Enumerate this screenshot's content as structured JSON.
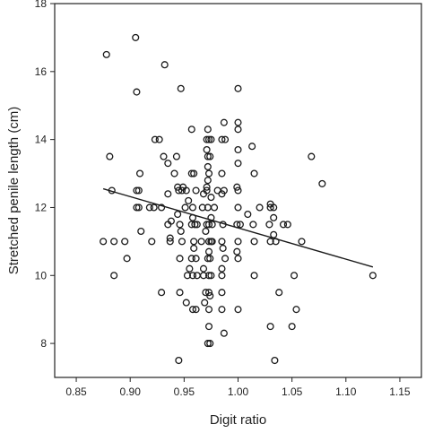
{
  "chart_data": {
    "type": "scatter",
    "xlabel": "Digit ratio",
    "ylabel": "Stretched penile length (cm)",
    "xlim": [
      0.83,
      1.17
    ],
    "ylim": [
      7,
      18
    ],
    "x_ticks": [
      "0.85",
      "0.90",
      "0.95",
      "1.00",
      "1.05",
      "1.10",
      "1.15"
    ],
    "y_ticks": [
      "8",
      "10",
      "12",
      "14",
      "16",
      "18"
    ],
    "grid": false,
    "marker": "open-circle",
    "colors": {
      "marker": "#1a1a1a",
      "line": "#1a1a1a",
      "axis": "#222222"
    },
    "trend_line": {
      "x": [
        0.875,
        1.125
      ],
      "y": [
        12.55,
        10.25
      ]
    },
    "points": [
      [
        0.878,
        16.5
      ],
      [
        0.905,
        17.0
      ],
      [
        0.932,
        16.2
      ],
      [
        0.906,
        15.4
      ],
      [
        0.947,
        15.5
      ],
      [
        1.0,
        15.5
      ],
      [
        0.957,
        14.3
      ],
      [
        0.972,
        14.3
      ],
      [
        0.987,
        14.5
      ],
      [
        1.0,
        14.5
      ],
      [
        1.0,
        14.3
      ],
      [
        0.923,
        14.0
      ],
      [
        0.927,
        14.0
      ],
      [
        0.971,
        14.0
      ],
      [
        0.973,
        14.0
      ],
      [
        0.975,
        14.0
      ],
      [
        0.985,
        14.0
      ],
      [
        0.988,
        14.0
      ],
      [
        1.013,
        13.8
      ],
      [
        0.971,
        13.7
      ],
      [
        1.0,
        13.7
      ],
      [
        0.881,
        13.5
      ],
      [
        0.931,
        13.5
      ],
      [
        0.943,
        13.5
      ],
      [
        0.972,
        13.5
      ],
      [
        0.974,
        13.5
      ],
      [
        1.068,
        13.5
      ],
      [
        0.935,
        13.3
      ],
      [
        0.972,
        13.2
      ],
      [
        1.0,
        13.3
      ],
      [
        0.909,
        13.0
      ],
      [
        0.941,
        13.0
      ],
      [
        0.957,
        13.0
      ],
      [
        0.959,
        13.0
      ],
      [
        0.973,
        13.0
      ],
      [
        0.985,
        13.0
      ],
      [
        1.015,
        13.0
      ],
      [
        0.972,
        12.8
      ],
      [
        1.078,
        12.7
      ],
      [
        0.971,
        12.6
      ],
      [
        0.944,
        12.6
      ],
      [
        0.949,
        12.6
      ],
      [
        0.999,
        12.6
      ],
      [
        0.883,
        12.5
      ],
      [
        0.906,
        12.5
      ],
      [
        0.908,
        12.5
      ],
      [
        0.945,
        12.5
      ],
      [
        0.948,
        12.5
      ],
      [
        0.952,
        12.5
      ],
      [
        0.961,
        12.5
      ],
      [
        0.971,
        12.5
      ],
      [
        0.981,
        12.5
      ],
      [
        0.987,
        12.5
      ],
      [
        1.0,
        12.5
      ],
      [
        0.935,
        12.4
      ],
      [
        0.968,
        12.4
      ],
      [
        0.985,
        12.4
      ],
      [
        0.954,
        12.2
      ],
      [
        0.975,
        12.3
      ],
      [
        0.906,
        12.0
      ],
      [
        0.908,
        12.0
      ],
      [
        0.918,
        12.0
      ],
      [
        0.922,
        12.0
      ],
      [
        0.929,
        12.0
      ],
      [
        0.951,
        12.0
      ],
      [
        0.958,
        12.0
      ],
      [
        0.967,
        12.0
      ],
      [
        0.972,
        12.0
      ],
      [
        0.978,
        12.0
      ],
      [
        1.0,
        12.0
      ],
      [
        1.02,
        12.0
      ],
      [
        1.03,
        12.0
      ],
      [
        1.033,
        12.0
      ],
      [
        1.03,
        12.1
      ],
      [
        0.944,
        11.8
      ],
      [
        1.009,
        11.8
      ],
      [
        0.958,
        11.7
      ],
      [
        0.975,
        11.7
      ],
      [
        1.033,
        11.7
      ],
      [
        0.938,
        11.6
      ],
      [
        0.935,
        11.5
      ],
      [
        0.946,
        11.5
      ],
      [
        0.957,
        11.5
      ],
      [
        0.96,
        11.5
      ],
      [
        0.962,
        11.5
      ],
      [
        0.971,
        11.5
      ],
      [
        0.973,
        11.5
      ],
      [
        0.976,
        11.5
      ],
      [
        0.986,
        11.5
      ],
      [
        0.999,
        11.5
      ],
      [
        1.002,
        11.5
      ],
      [
        1.014,
        11.5
      ],
      [
        1.029,
        11.5
      ],
      [
        1.042,
        11.5
      ],
      [
        1.046,
        11.5
      ],
      [
        0.91,
        11.3
      ],
      [
        0.947,
        11.3
      ],
      [
        0.97,
        11.3
      ],
      [
        1.033,
        11.2
      ],
      [
        0.875,
        11.0
      ],
      [
        0.885,
        11.0
      ],
      [
        0.895,
        11.0
      ],
      [
        0.92,
        11.0
      ],
      [
        0.937,
        11.0
      ],
      [
        0.937,
        11.1
      ],
      [
        0.948,
        11.0
      ],
      [
        0.959,
        11.0
      ],
      [
        0.966,
        11.0
      ],
      [
        0.973,
        11.0
      ],
      [
        0.975,
        11.0
      ],
      [
        0.976,
        11.0
      ],
      [
        0.985,
        11.0
      ],
      [
        1.0,
        11.0
      ],
      [
        1.015,
        11.0
      ],
      [
        1.03,
        11.0
      ],
      [
        1.035,
        11.0
      ],
      [
        1.059,
        11.0
      ],
      [
        0.959,
        10.8
      ],
      [
        0.973,
        10.7
      ],
      [
        0.986,
        10.8
      ],
      [
        0.999,
        10.7
      ],
      [
        0.897,
        10.5
      ],
      [
        0.946,
        10.5
      ],
      [
        0.957,
        10.5
      ],
      [
        0.961,
        10.5
      ],
      [
        0.972,
        10.5
      ],
      [
        0.974,
        10.5
      ],
      [
        0.988,
        10.5
      ],
      [
        1.0,
        10.5
      ],
      [
        0.955,
        10.2
      ],
      [
        0.968,
        10.2
      ],
      [
        0.985,
        10.2
      ],
      [
        0.885,
        10.0
      ],
      [
        0.953,
        10.0
      ],
      [
        0.958,
        10.0
      ],
      [
        0.962,
        10.0
      ],
      [
        0.968,
        10.0
      ],
      [
        0.973,
        10.0
      ],
      [
        0.975,
        10.0
      ],
      [
        0.985,
        10.0
      ],
      [
        1.015,
        10.0
      ],
      [
        1.052,
        10.0
      ],
      [
        1.125,
        10.0
      ],
      [
        0.929,
        9.5
      ],
      [
        0.946,
        9.5
      ],
      [
        0.97,
        9.5
      ],
      [
        0.973,
        9.5
      ],
      [
        0.974,
        9.4
      ],
      [
        0.985,
        9.5
      ],
      [
        1.038,
        9.5
      ],
      [
        0.952,
        9.2
      ],
      [
        0.969,
        9.2
      ],
      [
        0.958,
        9.0
      ],
      [
        0.961,
        9.0
      ],
      [
        0.973,
        9.0
      ],
      [
        0.985,
        9.0
      ],
      [
        1.0,
        9.0
      ],
      [
        1.054,
        9.0
      ],
      [
        0.973,
        8.5
      ],
      [
        1.03,
        8.5
      ],
      [
        1.05,
        8.5
      ],
      [
        0.987,
        8.3
      ],
      [
        0.972,
        8.0
      ],
      [
        0.974,
        8.0
      ],
      [
        0.945,
        7.5
      ],
      [
        1.034,
        7.5
      ]
    ]
  }
}
